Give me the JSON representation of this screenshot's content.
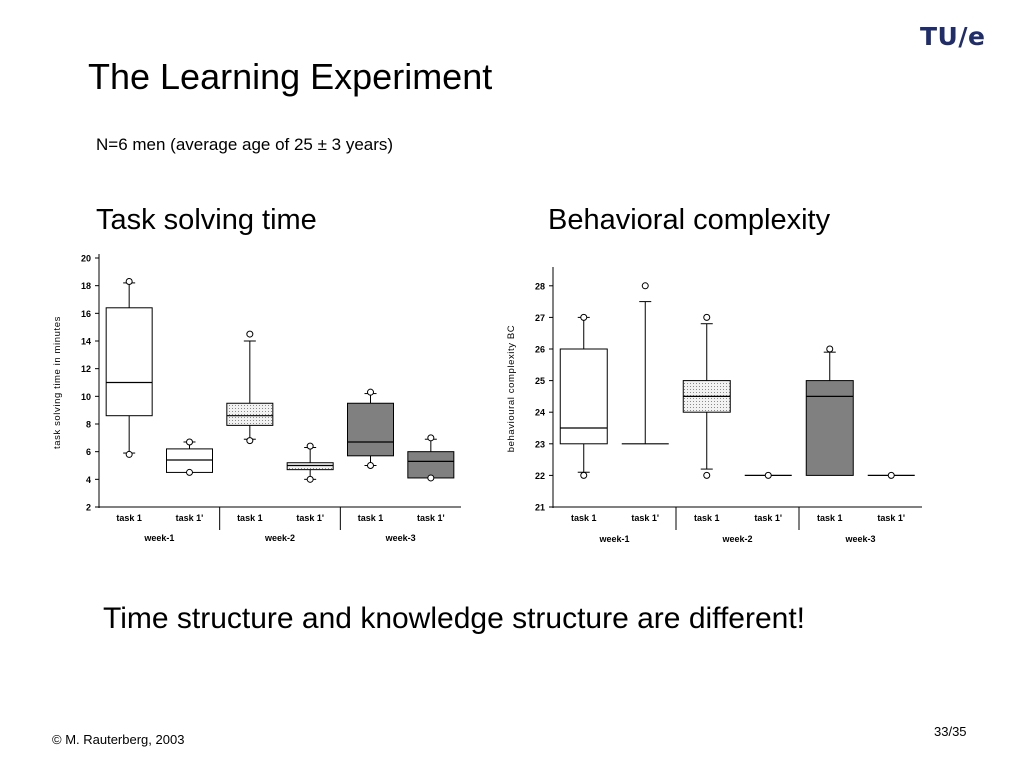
{
  "slide": {
    "logo": "TU/e",
    "title": "The Learning Experiment",
    "subtitle": "N=6 men (average age of 25 ± 3 years)",
    "heading_left": "Task solving time",
    "heading_right": "Behavioral complexity",
    "conclusion": "Time structure and knowledge structure are different!",
    "copyright": "© M. Rauterberg, 2003",
    "page_number": "33/35"
  },
  "chart_data": [
    {
      "type": "boxplot",
      "ylabel": "task solving time in minutes",
      "ylim": [
        2,
        20
      ],
      "yticks": [
        2,
        4,
        6,
        8,
        10,
        12,
        14,
        16,
        18,
        20
      ],
      "categories": [
        "task 1",
        "task 1'",
        "task 1",
        "task 1'",
        "task 1",
        "task 1'"
      ],
      "groups": [
        "week-1",
        "week-2",
        "week-3"
      ],
      "boxes": [
        {
          "label": "task 1",
          "group": "week-1",
          "fill": "white",
          "q1": 8.6,
          "median": 11.0,
          "q3": 16.4,
          "whisker_low": 5.9,
          "whisker_high": 18.2,
          "outliers": [
            5.8,
            18.3
          ]
        },
        {
          "label": "task 1'",
          "group": "week-1",
          "fill": "white",
          "q1": 4.5,
          "median": 5.4,
          "q3": 6.2,
          "whisker_low": 4.5,
          "whisker_high": 6.7,
          "outliers": [
            4.5,
            6.7
          ]
        },
        {
          "label": "task 1",
          "group": "week-2",
          "fill": "light-dotted",
          "q1": 7.9,
          "median": 8.6,
          "q3": 9.5,
          "whisker_low": 6.9,
          "whisker_high": 14.0,
          "outliers": [
            6.8,
            14.5
          ]
        },
        {
          "label": "task 1'",
          "group": "week-2",
          "fill": "light-dotted",
          "q1": 4.7,
          "median": 5.0,
          "q3": 5.2,
          "whisker_low": 4.0,
          "whisker_high": 6.3,
          "outliers": [
            4.0,
            6.4
          ]
        },
        {
          "label": "task 1",
          "group": "week-3",
          "fill": "dark",
          "q1": 5.7,
          "median": 6.7,
          "q3": 9.5,
          "whisker_low": 5.0,
          "whisker_high": 10.2,
          "outliers": [
            5.0,
            10.3
          ]
        },
        {
          "label": "task 1'",
          "group": "week-3",
          "fill": "dark",
          "q1": 4.1,
          "median": 5.3,
          "q3": 6.0,
          "whisker_low": 4.1,
          "whisker_high": 6.9,
          "outliers": [
            4.1,
            7.0
          ]
        }
      ]
    },
    {
      "type": "boxplot",
      "ylabel": "behavioural complexity BC",
      "ylim": [
        21,
        28.5
      ],
      "yticks": [
        21,
        22,
        23,
        24,
        25,
        26,
        27,
        28
      ],
      "categories": [
        "task 1",
        "task 1'",
        "task 1",
        "task 1'",
        "task 1",
        "task 1'"
      ],
      "groups": [
        "week-1",
        "week-2",
        "week-3"
      ],
      "boxes": [
        {
          "label": "task 1",
          "group": "week-1",
          "fill": "white",
          "q1": 23.0,
          "median": 23.5,
          "q3": 26.0,
          "whisker_low": 22.1,
          "whisker_high": 27.0,
          "outliers": [
            22.0,
            27.0
          ]
        },
        {
          "label": "task 1'",
          "group": "week-1",
          "fill": "white",
          "q1": 23.0,
          "median": 23.0,
          "q3": 23.0,
          "whisker_low": 23.0,
          "whisker_high": 27.5,
          "outliers": [
            28.0
          ]
        },
        {
          "label": "task 1",
          "group": "week-2",
          "fill": "light-dotted",
          "q1": 24.0,
          "median": 24.5,
          "q3": 25.0,
          "whisker_low": 22.2,
          "whisker_high": 26.8,
          "outliers": [
            22.0,
            27.0
          ]
        },
        {
          "label": "task 1'",
          "group": "week-2",
          "fill": "white",
          "q1": 22.0,
          "median": 22.0,
          "q3": 22.0,
          "whisker_low": 22.0,
          "whisker_high": 22.0,
          "outliers": [
            22.0
          ]
        },
        {
          "label": "task 1",
          "group": "week-3",
          "fill": "dark",
          "q1": 22.0,
          "median": 24.5,
          "q3": 25.0,
          "whisker_low": 22.0,
          "whisker_high": 25.9,
          "outliers": [
            26.0
          ]
        },
        {
          "label": "task 1'",
          "group": "week-3",
          "fill": "white",
          "q1": 22.0,
          "median": 22.0,
          "q3": 22.0,
          "whisker_low": 22.0,
          "whisker_high": 22.0,
          "outliers": [
            22.0
          ]
        }
      ]
    }
  ]
}
